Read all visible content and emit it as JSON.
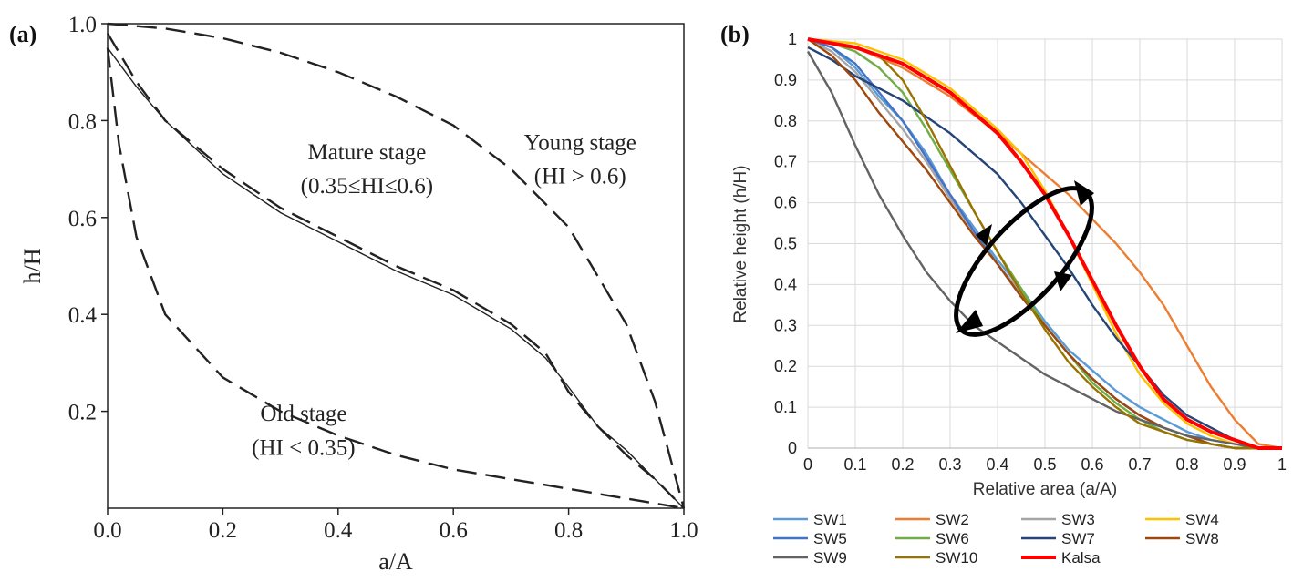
{
  "panel_a": {
    "label": "(a)",
    "chart_data": {
      "type": "line",
      "xlabel": "a/A",
      "ylabel": "h/H",
      "xlim": [
        0,
        1
      ],
      "ylim": [
        0,
        1
      ],
      "x_ticks": [
        "0.0",
        "0.2",
        "0.4",
        "0.6",
        "0.8",
        "1.0"
      ],
      "y_ticks": [
        "0.2",
        "0.4",
        "0.6",
        "0.8",
        "1.0"
      ],
      "grid": false,
      "annotations": [
        {
          "text": "Mature stage",
          "at": [
            0.45,
            0.72
          ]
        },
        {
          "text": "(0.35≤HI≤0.6)",
          "at": [
            0.45,
            0.65
          ]
        },
        {
          "text": "Young stage",
          "at": [
            0.82,
            0.74
          ]
        },
        {
          "text": "(HI > 0.6)",
          "at": [
            0.82,
            0.67
          ]
        },
        {
          "text": "Old  stage",
          "at": [
            0.34,
            0.18
          ]
        },
        {
          "text": "(HI < 0.35)",
          "at": [
            0.34,
            0.11
          ]
        }
      ],
      "series": [
        {
          "style": "dashed",
          "x": [
            0,
            0.1,
            0.2,
            0.3,
            0.4,
            0.5,
            0.6,
            0.7,
            0.8,
            0.9,
            0.95,
            1.0
          ],
          "y": [
            1.0,
            0.99,
            0.97,
            0.94,
            0.9,
            0.85,
            0.79,
            0.7,
            0.58,
            0.38,
            0.22,
            0.0
          ]
        },
        {
          "style": "dashed",
          "x": [
            0,
            0.05,
            0.1,
            0.2,
            0.3,
            0.4,
            0.5,
            0.6,
            0.7,
            0.76,
            0.8,
            0.85,
            0.9,
            0.95,
            1.0
          ],
          "y": [
            0.98,
            0.88,
            0.8,
            0.7,
            0.62,
            0.56,
            0.5,
            0.45,
            0.38,
            0.32,
            0.24,
            0.17,
            0.11,
            0.06,
            0.0
          ]
        },
        {
          "style": "solid",
          "x": [
            0,
            0.05,
            0.1,
            0.2,
            0.3,
            0.4,
            0.5,
            0.6,
            0.7,
            0.76,
            0.8,
            0.85,
            0.9,
            0.95,
            1.0
          ],
          "y": [
            0.95,
            0.87,
            0.8,
            0.69,
            0.61,
            0.55,
            0.49,
            0.44,
            0.37,
            0.31,
            0.25,
            0.17,
            0.12,
            0.06,
            0.0
          ]
        },
        {
          "style": "dashed",
          "x": [
            0,
            0.02,
            0.05,
            0.1,
            0.2,
            0.3,
            0.4,
            0.5,
            0.6,
            0.7,
            0.8,
            0.9,
            1.0
          ],
          "y": [
            0.95,
            0.75,
            0.56,
            0.4,
            0.27,
            0.2,
            0.15,
            0.11,
            0.08,
            0.06,
            0.04,
            0.02,
            0.0
          ]
        }
      ]
    }
  },
  "panel_b": {
    "label": "(b)",
    "chart_data": {
      "type": "line",
      "xlabel": "Relative area (a/A)",
      "ylabel": "Relative height (h/H)",
      "xlim": [
        0,
        1
      ],
      "ylim": [
        0,
        1
      ],
      "x_ticks": [
        "0",
        "0.1",
        "0.2",
        "0.3",
        "0.4",
        "0.5",
        "0.6",
        "0.7",
        "0.8",
        "0.9",
        "1"
      ],
      "y_ticks": [
        "0",
        "0.1",
        "0.2",
        "0.3",
        "0.4",
        "0.5",
        "0.6",
        "0.7",
        "0.8",
        "0.9",
        "1"
      ],
      "grid": true,
      "legend_position": "bottom",
      "series": [
        {
          "name": "SW1",
          "color": "#5b9bd5",
          "x": [
            0,
            0.05,
            0.1,
            0.15,
            0.2,
            0.25,
            0.3,
            0.35,
            0.4,
            0.45,
            0.5,
            0.55,
            0.6,
            0.65,
            0.7,
            0.75,
            0.8,
            0.85,
            0.9,
            0.95,
            1.0
          ],
          "y": [
            1.0,
            0.98,
            0.93,
            0.86,
            0.8,
            0.72,
            0.62,
            0.54,
            0.46,
            0.39,
            0.31,
            0.24,
            0.19,
            0.14,
            0.1,
            0.07,
            0.04,
            0.02,
            0.01,
            0.0,
            0.0
          ]
        },
        {
          "name": "SW2",
          "color": "#ed7d31",
          "x": [
            0,
            0.1,
            0.2,
            0.3,
            0.4,
            0.45,
            0.5,
            0.55,
            0.6,
            0.65,
            0.7,
            0.75,
            0.8,
            0.85,
            0.9,
            0.95,
            1.0
          ],
          "y": [
            1.0,
            0.98,
            0.93,
            0.86,
            0.77,
            0.72,
            0.67,
            0.62,
            0.56,
            0.5,
            0.43,
            0.35,
            0.25,
            0.15,
            0.07,
            0.01,
            0.0
          ]
        },
        {
          "name": "SW3",
          "color": "#a5a5a5",
          "x": [
            0,
            0.05,
            0.1,
            0.15,
            0.2,
            0.25,
            0.3,
            0.35,
            0.4,
            0.45,
            0.5,
            0.55,
            0.6,
            0.65,
            0.7,
            0.75,
            0.8,
            0.85,
            0.9,
            0.95,
            1.0
          ],
          "y": [
            1.0,
            0.97,
            0.92,
            0.85,
            0.78,
            0.7,
            0.61,
            0.53,
            0.45,
            0.38,
            0.3,
            0.23,
            0.17,
            0.12,
            0.08,
            0.05,
            0.03,
            0.01,
            0.0,
            0.0,
            0.0
          ]
        },
        {
          "name": "SW4",
          "color": "#ffc000",
          "x": [
            0,
            0.1,
            0.2,
            0.3,
            0.35,
            0.4,
            0.45,
            0.5,
            0.55,
            0.6,
            0.65,
            0.7,
            0.75,
            0.8,
            0.85,
            0.9,
            0.95,
            1.0
          ],
          "y": [
            1.0,
            0.99,
            0.95,
            0.88,
            0.83,
            0.78,
            0.72,
            0.63,
            0.52,
            0.4,
            0.28,
            0.18,
            0.11,
            0.06,
            0.03,
            0.01,
            0.0,
            0.0
          ]
        },
        {
          "name": "SW5",
          "color": "#4472c4",
          "x": [
            0,
            0.05,
            0.1,
            0.15,
            0.2,
            0.25,
            0.3,
            0.35,
            0.4,
            0.45,
            0.5,
            0.55,
            0.6,
            0.65,
            0.7,
            0.75,
            0.8,
            0.85,
            0.9,
            0.95,
            1.0
          ],
          "y": [
            1.0,
            0.98,
            0.94,
            0.87,
            0.8,
            0.71,
            0.62,
            0.53,
            0.45,
            0.37,
            0.3,
            0.23,
            0.17,
            0.12,
            0.08,
            0.05,
            0.03,
            0.01,
            0.0,
            0.0,
            0.0
          ]
        },
        {
          "name": "SW6",
          "color": "#70ad47",
          "x": [
            0,
            0.05,
            0.1,
            0.15,
            0.2,
            0.25,
            0.3,
            0.35,
            0.4,
            0.45,
            0.5,
            0.55,
            0.6,
            0.65,
            0.7,
            0.75,
            0.8,
            0.85,
            0.9,
            0.95,
            1.0
          ],
          "y": [
            1.0,
            0.99,
            0.97,
            0.93,
            0.87,
            0.78,
            0.68,
            0.58,
            0.48,
            0.39,
            0.3,
            0.23,
            0.16,
            0.11,
            0.07,
            0.04,
            0.02,
            0.01,
            0.0,
            0.0,
            0.0
          ]
        },
        {
          "name": "SW7",
          "color": "#264478",
          "x": [
            0,
            0.05,
            0.1,
            0.2,
            0.3,
            0.4,
            0.45,
            0.5,
            0.55,
            0.6,
            0.65,
            0.7,
            0.75,
            0.8,
            0.85,
            0.9,
            0.95,
            1.0
          ],
          "y": [
            0.98,
            0.95,
            0.91,
            0.85,
            0.77,
            0.67,
            0.6,
            0.52,
            0.44,
            0.35,
            0.27,
            0.2,
            0.13,
            0.08,
            0.05,
            0.02,
            0.0,
            0.0
          ]
        },
        {
          "name": "SW8",
          "color": "#9e480e",
          "x": [
            0,
            0.05,
            0.1,
            0.15,
            0.2,
            0.25,
            0.3,
            0.35,
            0.4,
            0.45,
            0.5,
            0.55,
            0.6,
            0.65,
            0.7,
            0.75,
            0.8,
            0.85,
            0.9,
            0.95,
            1.0
          ],
          "y": [
            1.0,
            0.96,
            0.9,
            0.82,
            0.75,
            0.68,
            0.6,
            0.52,
            0.45,
            0.37,
            0.3,
            0.23,
            0.17,
            0.12,
            0.08,
            0.05,
            0.03,
            0.01,
            0.0,
            0.0,
            0.0
          ]
        },
        {
          "name": "SW9",
          "color": "#636363",
          "x": [
            0,
            0.05,
            0.1,
            0.15,
            0.2,
            0.25,
            0.3,
            0.35,
            0.4,
            0.45,
            0.5,
            0.55,
            0.6,
            0.65,
            0.7,
            0.75,
            0.8,
            0.85,
            0.9,
            0.95,
            1.0
          ],
          "y": [
            0.97,
            0.87,
            0.74,
            0.62,
            0.52,
            0.43,
            0.36,
            0.3,
            0.26,
            0.22,
            0.18,
            0.15,
            0.12,
            0.09,
            0.07,
            0.05,
            0.03,
            0.02,
            0.01,
            0.0,
            0.0
          ]
        },
        {
          "name": "SW10",
          "color": "#997300",
          "x": [
            0,
            0.05,
            0.1,
            0.15,
            0.2,
            0.25,
            0.3,
            0.35,
            0.4,
            0.45,
            0.5,
            0.55,
            0.6,
            0.65,
            0.7,
            0.75,
            0.8,
            0.85,
            0.9,
            0.95,
            1.0
          ],
          "y": [
            1.0,
            0.99,
            0.98,
            0.96,
            0.9,
            0.8,
            0.69,
            0.58,
            0.48,
            0.38,
            0.29,
            0.21,
            0.15,
            0.1,
            0.06,
            0.04,
            0.02,
            0.01,
            0.0,
            0.0,
            0.0
          ]
        },
        {
          "name": "Kalsa",
          "color": "#ff0000",
          "x": [
            0,
            0.1,
            0.2,
            0.3,
            0.4,
            0.45,
            0.5,
            0.55,
            0.6,
            0.65,
            0.7,
            0.75,
            0.8,
            0.85,
            0.9,
            0.95,
            1.0
          ],
          "y": [
            1.0,
            0.98,
            0.94,
            0.87,
            0.77,
            0.7,
            0.62,
            0.52,
            0.41,
            0.3,
            0.2,
            0.12,
            0.07,
            0.04,
            0.02,
            0.0,
            0.0
          ]
        }
      ]
    }
  }
}
